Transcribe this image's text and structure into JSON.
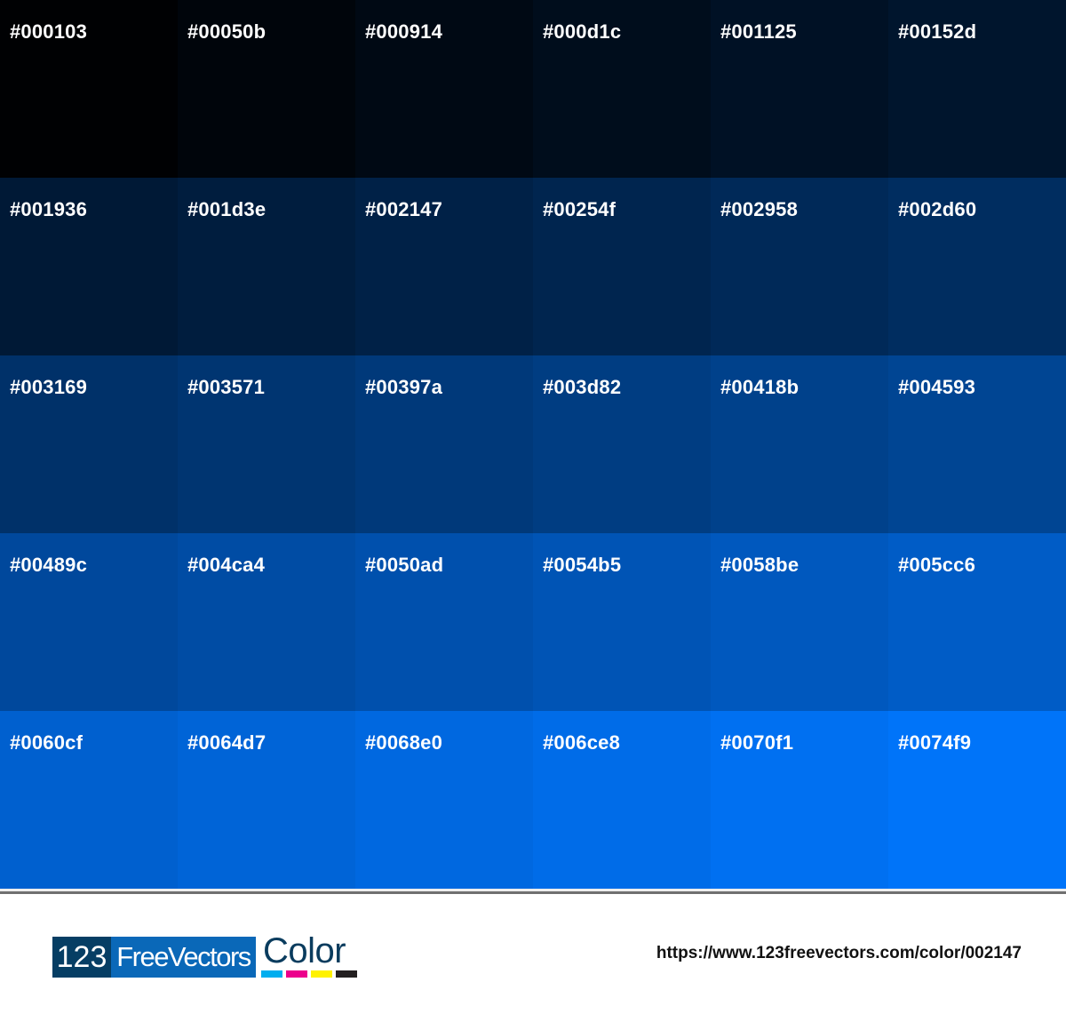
{
  "swatches": [
    "#000103",
    "#00050b",
    "#000914",
    "#000d1c",
    "#001125",
    "#00152d",
    "#001936",
    "#001d3e",
    "#002147",
    "#00254f",
    "#002958",
    "#002d60",
    "#003169",
    "#003571",
    "#00397a",
    "#003d82",
    "#00418b",
    "#004593",
    "#00489c",
    "#004ca4",
    "#0050ad",
    "#0054b5",
    "#0058be",
    "#005cc6",
    "#0060cf",
    "#0064d7",
    "#0068e0",
    "#006ce8",
    "#0070f1",
    "#0074f9"
  ],
  "footer": {
    "logo": {
      "part1": "123",
      "part2": "FreeVectors",
      "part3": "Color",
      "bar_colors": [
        "#00aeef",
        "#ec008c",
        "#fff200",
        "#231f20"
      ]
    },
    "url": "https://www.123freevectors.com/color/002147"
  }
}
